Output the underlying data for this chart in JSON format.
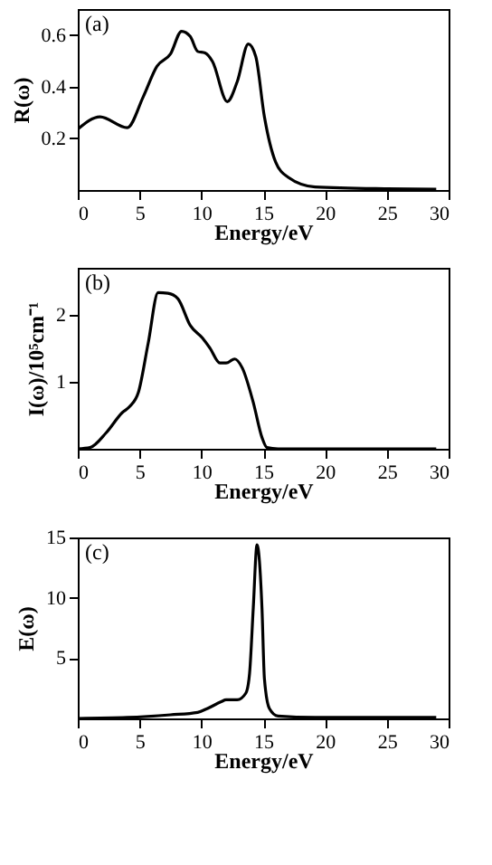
{
  "chart_data": [
    {
      "type": "line",
      "xlabel": "Energy/eV",
      "ylabel": "R(ω)",
      "annotations": [
        "(a)"
      ],
      "color": "#000000",
      "grid": false,
      "xlim": [
        0,
        30
      ],
      "xticks": [
        0,
        5,
        10,
        15,
        20,
        25,
        30
      ],
      "ylim": [
        0,
        0.7
      ],
      "yticks": [
        0.2,
        0.4,
        0.6
      ],
      "x": [
        0,
        1.8,
        4,
        5.3,
        6.4,
        7.5,
        8.4,
        9.1,
        9.7,
        10.3,
        10.9,
        12.1,
        12.9,
        13.8,
        14.4,
        15.1,
        16,
        17,
        19.2,
        25,
        29
      ],
      "values": [
        0.235,
        0.283,
        0.241,
        0.361,
        0.478,
        0.526,
        0.614,
        0.594,
        0.536,
        0.53,
        0.497,
        0.342,
        0.419,
        0.565,
        0.516,
        0.283,
        0.109,
        0.05,
        0.012,
        0.005,
        0.003
      ]
    },
    {
      "type": "line",
      "xlabel": "Energy/eV",
      "ylabel": "I(ω)/10⁵cm⁻¹",
      "annotations": [
        "(b)"
      ],
      "color": "#000000",
      "grid": false,
      "xlim": [
        0,
        30
      ],
      "xticks": [
        0,
        5,
        10,
        15,
        20,
        25,
        30
      ],
      "ylim": [
        0,
        2.7
      ],
      "yticks": [
        1,
        2
      ],
      "x": [
        0,
        1,
        2.3,
        3.6,
        4.2,
        4.9,
        5.7,
        6.5,
        7.3,
        8.1,
        9.1,
        10.1,
        10.7,
        11.5,
        12,
        12.7,
        13.3,
        14.2,
        14.9,
        15.3,
        16.2,
        29
      ],
      "values": [
        0,
        0.02,
        0.24,
        0.54,
        0.63,
        0.84,
        1.58,
        2.33,
        2.32,
        2.24,
        1.84,
        1.65,
        1.5,
        1.28,
        1.28,
        1.34,
        1.21,
        0.69,
        0.17,
        0.02,
        0,
        0
      ]
    },
    {
      "type": "line",
      "xlabel": "Energy/eV",
      "ylabel": "E(ω)",
      "annotations": [
        "(c)"
      ],
      "color": "#000000",
      "grid": false,
      "xlim": [
        0,
        30
      ],
      "xticks": [
        0,
        5,
        10,
        15,
        20,
        25,
        30
      ],
      "ylim": [
        0,
        15
      ],
      "yticks": [
        5,
        10,
        15
      ],
      "x": [
        0,
        4,
        7.5,
        9.7,
        10.5,
        11.6,
        12,
        12.9,
        13.6,
        13.9,
        14.2,
        14.5,
        14.9,
        15.1,
        15.5,
        16.2,
        19.2,
        29
      ],
      "values": [
        0,
        0.08,
        0.3,
        0.5,
        0.83,
        1.38,
        1.54,
        1.54,
        2.1,
        3.75,
        9.2,
        14.4,
        9.2,
        3.3,
        0.83,
        0.2,
        0.08,
        0.08
      ]
    }
  ]
}
